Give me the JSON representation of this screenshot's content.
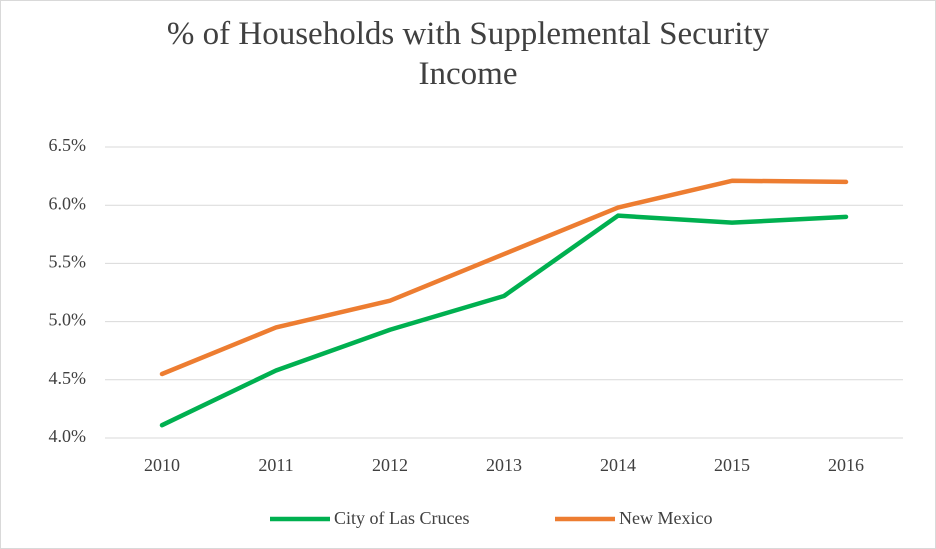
{
  "chart_data": {
    "type": "line",
    "title": "% of Households with Supplemental Security Income",
    "categories": [
      "2010",
      "2011",
      "2012",
      "2013",
      "2014",
      "2015",
      "2016"
    ],
    "series": [
      {
        "name": "City of Las Cruces",
        "color": "#00b050",
        "values": [
          4.11,
          4.58,
          4.93,
          5.22,
          5.91,
          5.85,
          5.9
        ]
      },
      {
        "name": "New Mexico",
        "color": "#ed7d31",
        "values": [
          4.55,
          4.95,
          5.18,
          5.58,
          5.98,
          6.21,
          6.2
        ]
      }
    ],
    "ylim": [
      4.0,
      6.5
    ],
    "yticks": [
      {
        "value": 4.0,
        "label": "4.0%"
      },
      {
        "value": 4.5,
        "label": "4.5%"
      },
      {
        "value": 5.0,
        "label": "5.0%"
      },
      {
        "value": 5.5,
        "label": "5.5%"
      },
      {
        "value": 6.0,
        "label": "6.0%"
      },
      {
        "value": 6.5,
        "label": "6.5%"
      }
    ],
    "grid": true,
    "legend": "bottom"
  }
}
